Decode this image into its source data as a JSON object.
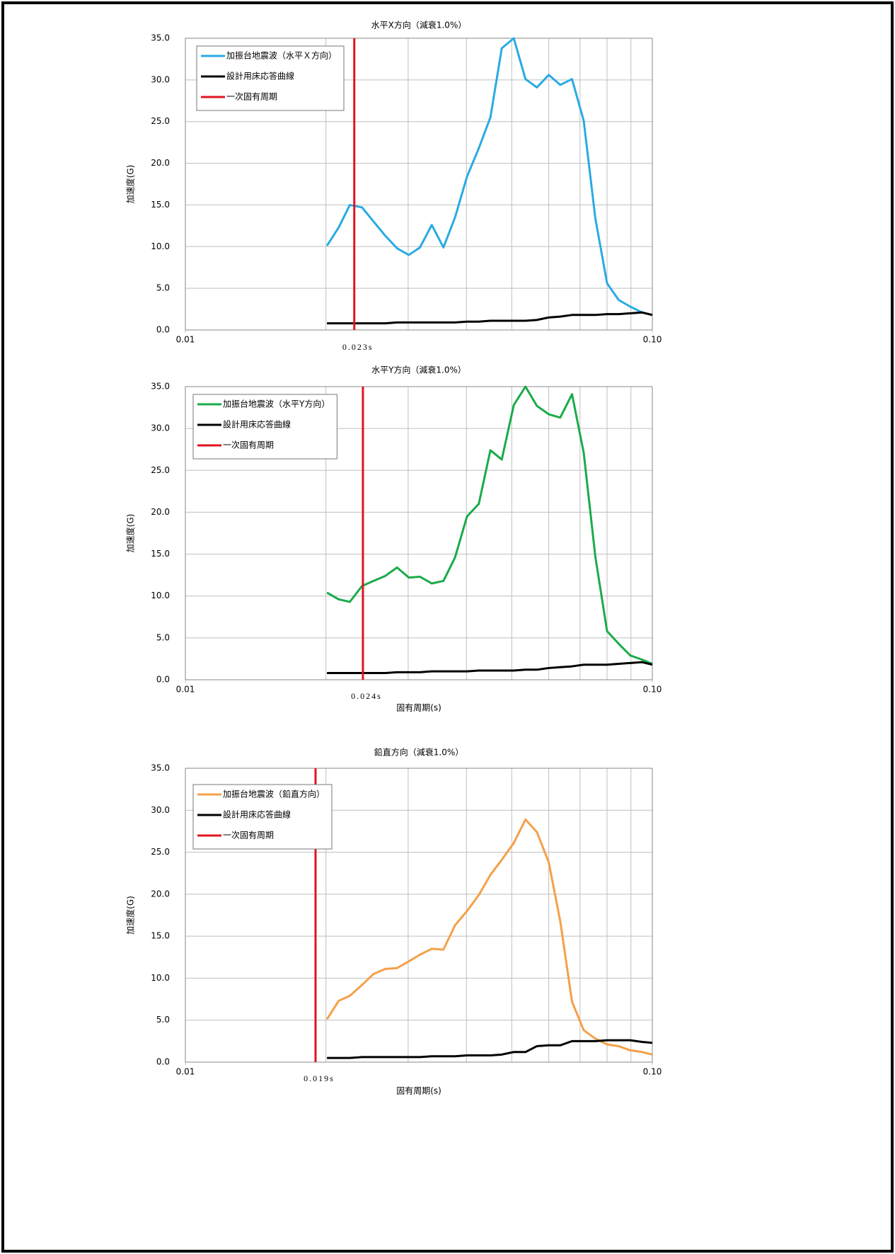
{
  "chart_data": [
    {
      "type": "line",
      "title": "水平X方向（減衰1.0%）",
      "ylabel": "加速度(G)",
      "xscale": "log",
      "grid": true,
      "legend": "upper left",
      "xlim": [
        0.01,
        0.1
      ],
      "xticks": [
        {
          "value": 0.01,
          "label": "0.01"
        },
        {
          "value": 0.1,
          "label": "0.10"
        }
      ],
      "x_minor_grid": [
        0.02,
        0.03,
        0.04,
        0.05,
        0.06,
        0.07,
        0.08,
        0.09
      ],
      "ylim": [
        0,
        35
      ],
      "yticks": [
        {
          "value": 0,
          "label": "0.0"
        },
        {
          "value": 5,
          "label": "5.0"
        },
        {
          "value": 10,
          "label": "10.0"
        },
        {
          "value": 15,
          "label": "15.0"
        },
        {
          "value": 20,
          "label": "20.0"
        },
        {
          "value": 25,
          "label": "25.0"
        },
        {
          "value": 30,
          "label": "30.0"
        },
        {
          "value": 35,
          "label": "35.0"
        }
      ],
      "x": [
        0.0201,
        0.0213,
        0.0225,
        0.0239,
        0.0253,
        0.0268,
        0.0284,
        0.0301,
        0.0318,
        0.0337,
        0.0357,
        0.0378,
        0.0401,
        0.0425,
        0.045,
        0.0476,
        0.0505,
        0.0535,
        0.0566,
        0.06,
        0.0635,
        0.0673,
        0.0713,
        0.0755,
        0.08,
        0.0847,
        0.0897,
        0.0951,
        0.1
      ],
      "series": [
        {
          "name": "加振台地震波（水平Ｘ方向）",
          "color": "#29abe2",
          "values": [
            10.1,
            12.3,
            15.0,
            14.7,
            13.0,
            11.3,
            9.8,
            9.0,
            9.9,
            12.6,
            9.9,
            13.5,
            18.4,
            21.8,
            25.5,
            33.8,
            35.0,
            30.1,
            29.1,
            30.6,
            29.4,
            30.1,
            25.1,
            13.4,
            5.6,
            3.6,
            2.8,
            2.1,
            1.8
          ]
        },
        {
          "name": "設計用床応答曲線",
          "color": "#000000",
          "values": [
            0.8,
            0.8,
            0.8,
            0.8,
            0.8,
            0.8,
            0.9,
            0.9,
            0.9,
            0.9,
            0.9,
            0.9,
            1.0,
            1.0,
            1.1,
            1.1,
            1.1,
            1.1,
            1.2,
            1.5,
            1.6,
            1.8,
            1.8,
            1.8,
            1.9,
            1.9,
            2.0,
            2.1,
            1.8
          ]
        }
      ],
      "vline": {
        "name": "一次固有周期",
        "color": "#e0141e",
        "value": 0.023,
        "label": "0.023s"
      }
    },
    {
      "type": "line",
      "title": "水平Y方向（減衰1.0%）",
      "xlabel": "固有周期(s)",
      "ylabel": "加速度(G)",
      "xscale": "log",
      "grid": true,
      "legend": "upper left",
      "xlim": [
        0.01,
        0.1
      ],
      "xticks": [
        {
          "value": 0.01,
          "label": "0.01"
        },
        {
          "value": 0.1,
          "label": "0.10"
        }
      ],
      "x_minor_grid": [
        0.02,
        0.03,
        0.04,
        0.05,
        0.06,
        0.07,
        0.08,
        0.09
      ],
      "ylim": [
        0,
        35
      ],
      "yticks": [
        {
          "value": 0,
          "label": "0.0"
        },
        {
          "value": 5,
          "label": "5.0"
        },
        {
          "value": 10,
          "label": "10.0"
        },
        {
          "value": 15,
          "label": "15.0"
        },
        {
          "value": 20,
          "label": "20.0"
        },
        {
          "value": 25,
          "label": "25.0"
        },
        {
          "value": 30,
          "label": "30.0"
        },
        {
          "value": 35,
          "label": "35.0"
        }
      ],
      "x": [
        0.0201,
        0.0213,
        0.0225,
        0.0239,
        0.0253,
        0.0268,
        0.0284,
        0.0301,
        0.0318,
        0.0337,
        0.0357,
        0.0378,
        0.0401,
        0.0425,
        0.045,
        0.0476,
        0.0505,
        0.0535,
        0.0566,
        0.06,
        0.0635,
        0.0673,
        0.0713,
        0.0755,
        0.08,
        0.0847,
        0.0897,
        0.0951,
        0.1
      ],
      "series": [
        {
          "name": "加振台地震波（水平Y方向）",
          "color": "#1aab4a",
          "values": [
            10.4,
            9.6,
            9.3,
            11.2,
            11.8,
            12.4,
            13.4,
            12.2,
            12.3,
            11.5,
            11.8,
            14.6,
            19.5,
            21.0,
            27.4,
            26.3,
            32.8,
            35.0,
            32.7,
            31.7,
            31.3,
            34.1,
            27.1,
            14.7,
            5.8,
            4.3,
            2.9,
            2.4,
            1.9
          ]
        },
        {
          "name": "設計用床応答曲線",
          "color": "#000000",
          "values": [
            0.8,
            0.8,
            0.8,
            0.8,
            0.8,
            0.8,
            0.9,
            0.9,
            0.9,
            1.0,
            1.0,
            1.0,
            1.0,
            1.1,
            1.1,
            1.1,
            1.1,
            1.2,
            1.2,
            1.4,
            1.5,
            1.6,
            1.8,
            1.8,
            1.8,
            1.9,
            2.0,
            2.1,
            1.8
          ]
        }
      ],
      "vline": {
        "name": "一次固有周期",
        "color": "#e0141e",
        "value": 0.024,
        "label": "0.024s"
      }
    },
    {
      "type": "line",
      "title": "鉛直方向（減衰1.0%）",
      "xlabel": "固有周期(s)",
      "ylabel": "加速度(G)",
      "xscale": "log",
      "grid": true,
      "legend": "upper left",
      "xlim": [
        0.01,
        0.1
      ],
      "xticks": [
        {
          "value": 0.01,
          "label": "0.01"
        },
        {
          "value": 0.1,
          "label": "0.10"
        }
      ],
      "x_minor_grid": [
        0.02,
        0.03,
        0.04,
        0.05,
        0.06,
        0.07,
        0.08,
        0.09
      ],
      "ylim": [
        0,
        35
      ],
      "yticks": [
        {
          "value": 0,
          "label": "0.0"
        },
        {
          "value": 5,
          "label": "5.0"
        },
        {
          "value": 10,
          "label": "10.0"
        },
        {
          "value": 15,
          "label": "15.0"
        },
        {
          "value": 20,
          "label": "20.0"
        },
        {
          "value": 25,
          "label": "25.0"
        },
        {
          "value": 30,
          "label": "30.0"
        },
        {
          "value": 35,
          "label": "35.0"
        }
      ],
      "x": [
        0.0201,
        0.0213,
        0.0225,
        0.0239,
        0.0253,
        0.0268,
        0.0284,
        0.0301,
        0.0318,
        0.0337,
        0.0357,
        0.0378,
        0.0401,
        0.0425,
        0.045,
        0.0476,
        0.0505,
        0.0535,
        0.0566,
        0.06,
        0.0635,
        0.0673,
        0.0713,
        0.0755,
        0.08,
        0.0847,
        0.0897,
        0.0951,
        0.1
      ],
      "series": [
        {
          "name": "加振台地震波（鉛直方向）",
          "color": "#f4a04a",
          "values": [
            5.1,
            7.3,
            7.9,
            9.2,
            10.5,
            11.1,
            11.2,
            12.0,
            12.8,
            13.5,
            13.4,
            16.3,
            18.0,
            19.9,
            22.3,
            24.1,
            26.1,
            28.9,
            27.4,
            23.8,
            16.8,
            7.2,
            3.8,
            2.8,
            2.1,
            1.9,
            1.4,
            1.2,
            0.9
          ]
        },
        {
          "name": "設計用床応答曲線",
          "color": "#000000",
          "values": [
            0.5,
            0.5,
            0.5,
            0.6,
            0.6,
            0.6,
            0.6,
            0.6,
            0.6,
            0.7,
            0.7,
            0.7,
            0.8,
            0.8,
            0.8,
            0.9,
            1.2,
            1.2,
            1.9,
            2.0,
            2.0,
            2.5,
            2.5,
            2.5,
            2.6,
            2.6,
            2.6,
            2.4,
            2.3
          ]
        }
      ],
      "vline": {
        "name": "一次固有周期",
        "color": "#e0141e",
        "value": 0.019,
        "label": "0.019s"
      }
    }
  ]
}
